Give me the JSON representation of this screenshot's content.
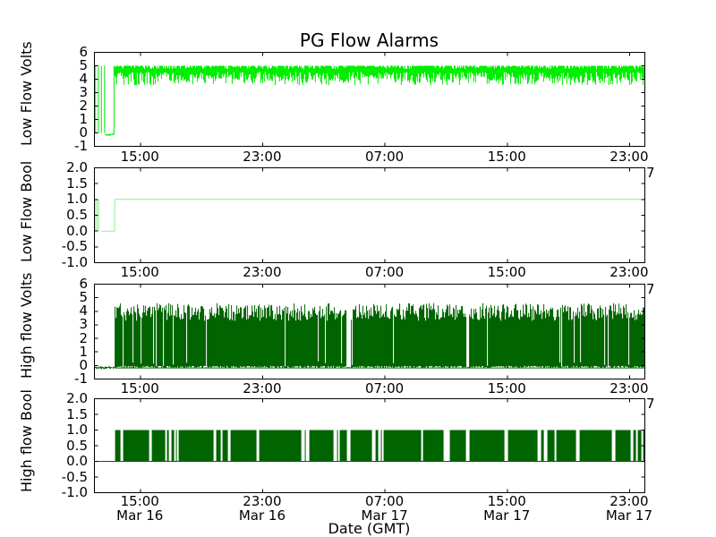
{
  "chart_data": {
    "type": "line",
    "title": "PG Flow Alarms",
    "xlabel": "Date (GMT)",
    "clipped_date_remnant": "7",
    "x_axis": {
      "start": "Mar 16 12:00",
      "end": "Mar 18 00:00",
      "span_hours": 36,
      "grid": false,
      "ticks": [
        {
          "hour": 3,
          "time": "15:00",
          "date": "Mar 16"
        },
        {
          "hour": 11,
          "time": "23:00",
          "date": "Mar 16"
        },
        {
          "hour": 19,
          "time": "07:00",
          "date": "Mar 17"
        },
        {
          "hour": 27,
          "time": "15:00",
          "date": "Mar 17"
        },
        {
          "hour": 35,
          "time": "23:00",
          "date": "Mar 17"
        }
      ]
    },
    "panels": [
      {
        "ylabel": "Low Flow Volts",
        "ylim": [
          -1,
          6
        ],
        "yticks": [
          6,
          5,
          4,
          3,
          2,
          1,
          0,
          -1
        ],
        "ytick_labels": [
          "6",
          "5",
          "4",
          "3",
          "2",
          "1",
          "0",
          "-1"
        ],
        "color": "#00ee00",
        "segments": [
          {
            "kind": "square",
            "t0": 0.07,
            "t1": 0.72,
            "lo": 0.0,
            "hi": 5.0
          },
          {
            "kind": "noise",
            "t0": 0.72,
            "t1": 1.28,
            "base": -0.12,
            "amp": 0.1
          },
          {
            "kind": "band",
            "t0": 1.28,
            "t1": 36,
            "top": 5.0,
            "bottom_mean": 4.2,
            "bottom_spread": 0.35,
            "dip_min": 3.55,
            "dip_p": 0.22,
            "rise_from": -0.12
          }
        ]
      },
      {
        "ylabel": "Low Flow Bool",
        "ylim": [
          -1,
          2
        ],
        "yticks": [
          2.0,
          1.5,
          1.0,
          0.5,
          0.0,
          -0.5,
          -1.0
        ],
        "ytick_labels": [
          "2.0",
          "1.5",
          "1.0",
          "0.5",
          "0.0",
          "-0.5",
          "-1.0"
        ],
        "color": "#90ee90",
        "segments": [
          {
            "kind": "square",
            "t0": 0.07,
            "t1": 0.45,
            "lo": 0.0,
            "hi": 1.0
          },
          {
            "kind": "flat",
            "t0": 0.45,
            "t1": 1.32,
            "level": 0.0
          },
          {
            "kind": "flat",
            "t0": 1.32,
            "t1": 36,
            "level": 1.0,
            "rise_from": 0.0
          }
        ]
      },
      {
        "ylabel": "High flow Volts",
        "ylim": [
          -1,
          6
        ],
        "yticks": [
          6,
          5,
          4,
          3,
          2,
          1,
          0,
          -1
        ],
        "ytick_labels": [
          "6",
          "5",
          "4",
          "3",
          "2",
          "1",
          "0",
          "-1"
        ],
        "color": "#006400",
        "segments": [
          {
            "kind": "noise",
            "t0": 0,
            "t1": 1.35,
            "base": -0.15,
            "amp": 0.12
          },
          {
            "kind": "spikes",
            "t0": 1.35,
            "t1": 36,
            "base": -0.18,
            "peak_min": 3.3,
            "peak_max": 4.6,
            "gap_p": 0.05,
            "wide_gaps": [
              [
                16.5,
                16.72
              ],
              [
                24.3,
                24.52
              ],
              [
                7.3,
                7.38
              ],
              [
                30.55,
                30.62
              ]
            ]
          }
        ]
      },
      {
        "ylabel": "High flow Bool",
        "ylim": [
          -1,
          2
        ],
        "yticks": [
          2.0,
          1.5,
          1.0,
          0.5,
          0.0,
          -0.5,
          -1.0
        ],
        "ytick_labels": [
          "2.0",
          "1.5",
          "1.0",
          "0.5",
          "0.0",
          "-0.5",
          "-1.0"
        ],
        "color": "#006400",
        "segments": [
          {
            "kind": "flat",
            "t0": 0,
            "t1": 1.38,
            "level": 0.0
          },
          {
            "kind": "boolwave",
            "t0": 1.38,
            "t1": 36,
            "lo": 0.0,
            "hi": 1.0,
            "gap_p": 0.07,
            "wide_gaps": [
              [
                16.5,
                16.72
              ],
              [
                24.3,
                24.52
              ]
            ]
          }
        ]
      }
    ]
  }
}
